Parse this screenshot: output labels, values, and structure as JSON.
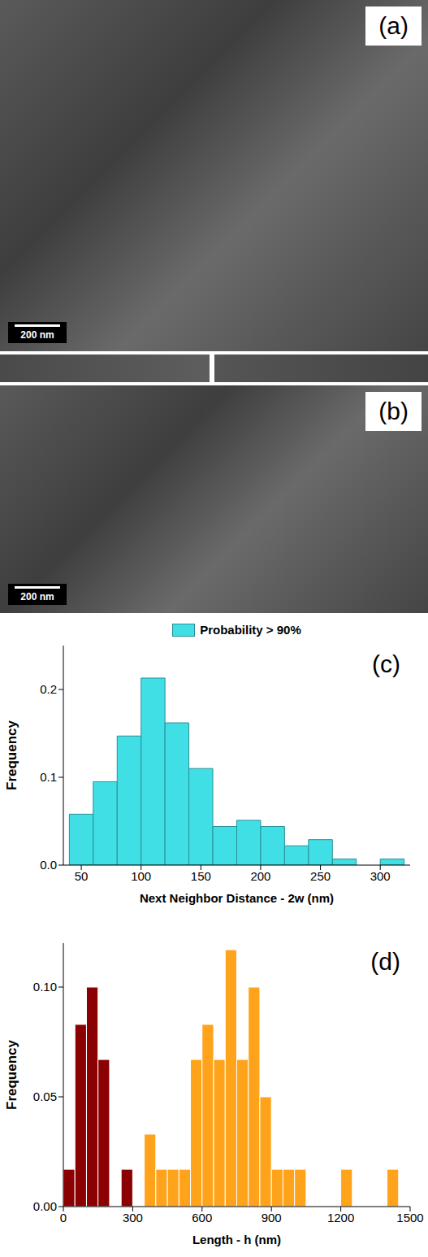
{
  "images": [
    {
      "label": "(a)",
      "scale_bar": "200 nm"
    },
    {
      "label": "(b)",
      "scale_bar": "200 nm"
    }
  ],
  "chart_data": [
    {
      "type": "histogram",
      "annotations": [
        "(c)"
      ],
      "xlabel": "Next Neighbor Distance - 2w (nm)",
      "ylabel": "Frequency",
      "legend": "top",
      "grid": false,
      "bins": [
        40,
        60,
        80,
        100,
        120,
        140,
        160,
        180,
        200,
        220,
        240,
        260,
        280,
        300,
        320
      ],
      "series": [
        {
          "name": "Probability > 90%",
          "color": "#40dfe6",
          "values": [
            0.058,
            0.095,
            0.147,
            0.213,
            0.162,
            0.11,
            0.044,
            0.051,
            0.044,
            0.022,
            0.029,
            0.007,
            0,
            0.007
          ]
        }
      ],
      "xlim": [
        35,
        325
      ],
      "xticks": [
        50,
        100,
        150,
        200,
        250,
        300
      ],
      "ylim": [
        0,
        0.25
      ],
      "yticks": [
        {
          "value": 0,
          "label": "0.0"
        },
        0.1,
        0.2
      ]
    },
    {
      "type": "histogram",
      "annotations": [
        "(d)"
      ],
      "xlabel": "Length - h (nm)",
      "ylabel": "Frequency",
      "grid": false,
      "bins": [
        0,
        50,
        100,
        150,
        200,
        250,
        300,
        350,
        400,
        450,
        500,
        550,
        600,
        650,
        700,
        750,
        800,
        850,
        900,
        950,
        1000,
        1050,
        1100,
        1150,
        1200,
        1250,
        1300,
        1350,
        1400,
        1450,
        1500
      ],
      "series": [
        {
          "color": "#8b0000",
          "values": [
            0.017,
            0.083,
            0.1,
            0.067,
            0,
            0.017,
            0,
            0,
            0,
            0,
            0,
            0,
            0,
            0,
            0,
            0,
            0,
            0,
            0,
            0,
            0,
            0,
            0,
            0,
            0,
            0,
            0,
            0,
            0,
            0
          ]
        },
        {
          "color": "#ffa31a",
          "values": [
            0,
            0,
            0,
            0,
            0,
            0,
            0,
            0.033,
            0.017,
            0.017,
            0.017,
            0.067,
            0.083,
            0.067,
            0.117,
            0.067,
            0.1,
            0.05,
            0.017,
            0.017,
            0.017,
            0,
            0,
            0,
            0.017,
            0,
            0,
            0,
            0.017,
            0
          ]
        }
      ],
      "xlim": [
        0,
        1500
      ],
      "xticks": [
        0,
        300,
        600,
        900,
        1200,
        1500
      ],
      "ylim": [
        0,
        0.12
      ],
      "yticks": [
        {
          "value": 0,
          "label": "0.00"
        },
        {
          "value": 0.05,
          "label": "0.05"
        },
        {
          "value": 0.1,
          "label": "0.10"
        }
      ]
    }
  ]
}
